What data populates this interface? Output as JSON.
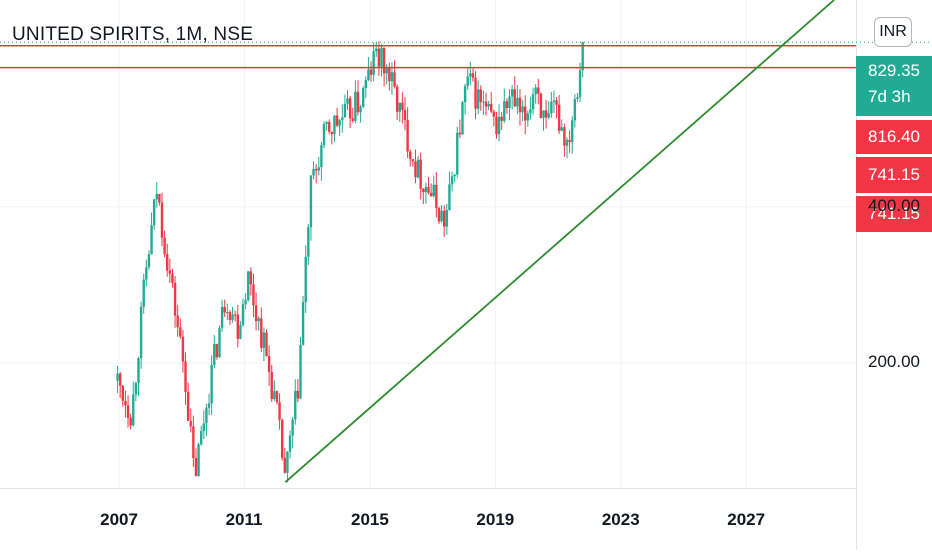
{
  "header": {
    "title": "UNITED SPIRITS, 1M, NSE",
    "currency": "INR"
  },
  "price_tags": {
    "last_price": "829.35",
    "countdown": "7d 3h",
    "level_1": "816.40",
    "level_2": "741.15",
    "level_3": "741.15"
  },
  "colors": {
    "up": "#22ab94",
    "down": "#f23645",
    "trendline": "#2e8b2e",
    "resistance": "#e53935"
  },
  "chart_data": {
    "type": "candlestick",
    "title": "UNITED SPIRITS, 1M, NSE",
    "y_scale": "log",
    "ylim": [
      115,
      1000
    ],
    "xlim": [
      2003.2,
      2030.5
    ],
    "x_tick_labels": [
      "2007",
      "2011",
      "2015",
      "2019",
      "2023",
      "2027"
    ],
    "y_tick_labels": [
      "200.00",
      "400.00"
    ],
    "y_ticks": [
      200,
      400
    ],
    "grid": true,
    "anchors": [
      [
        2006.95,
        185
      ],
      [
        2007.4,
        160
      ],
      [
        2007.8,
        280
      ],
      [
        2008.2,
        430
      ],
      [
        2008.6,
        300
      ],
      [
        2009.1,
        190
      ],
      [
        2009.4,
        120
      ],
      [
        2009.9,
        185
      ],
      [
        2010.4,
        270
      ],
      [
        2010.8,
        235
      ],
      [
        2011.1,
        295
      ],
      [
        2011.6,
        220
      ],
      [
        2012.0,
        165
      ],
      [
        2012.3,
        120
      ],
      [
        2012.7,
        180
      ],
      [
        2013.1,
        430
      ],
      [
        2013.6,
        560
      ],
      [
        2014.1,
        590
      ],
      [
        2014.7,
        640
      ],
      [
        2015.2,
        790
      ],
      [
        2015.6,
        720
      ],
      [
        2016.0,
        600
      ],
      [
        2016.5,
        470
      ],
      [
        2017.0,
        420
      ],
      [
        2017.4,
        370
      ],
      [
        2017.8,
        540
      ],
      [
        2018.1,
        700
      ],
      [
        2018.5,
        640
      ],
      [
        2019.0,
        570
      ],
      [
        2019.5,
        650
      ],
      [
        2019.9,
        580
      ],
      [
        2020.3,
        700
      ],
      [
        2020.6,
        560
      ],
      [
        2020.9,
        620
      ],
      [
        2021.3,
        530
      ],
      [
        2021.6,
        690
      ],
      [
        2021.85,
        829.35
      ]
    ],
    "resistance_levels": [
      816.4,
      741.15
    ],
    "trendline": {
      "from": [
        2012.3,
        118
      ],
      "to": [
        2029.8,
        1000
      ]
    },
    "last_price": 829.35
  }
}
